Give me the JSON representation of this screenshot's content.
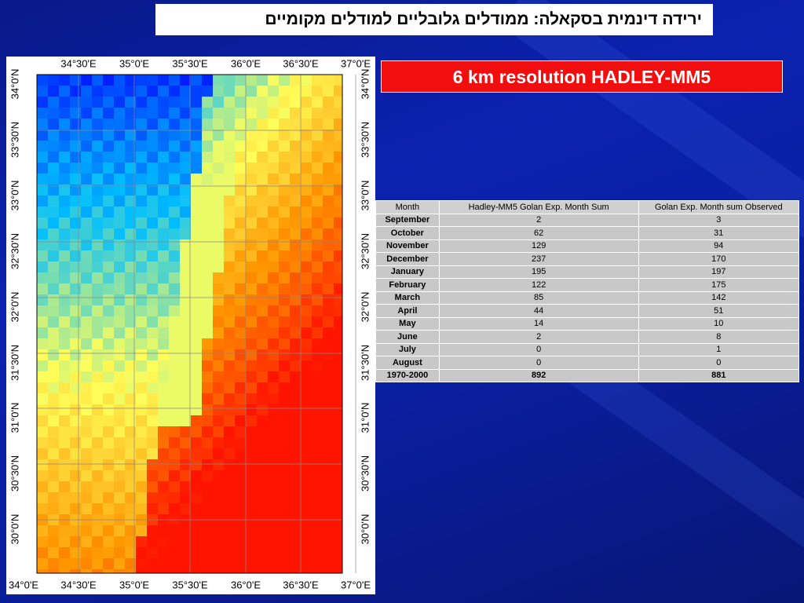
{
  "header": {
    "title": "ירידה דינמית  בסקאלה: ממודלים גלובליים למודלים מקומיים"
  },
  "banner": "6 km resolution HADLEY-MM5",
  "map": {
    "top_labels": [
      "34°30'E",
      "35°0'E",
      "35°30'E",
      "36°0'E",
      "36°30'E",
      "37°0'E"
    ],
    "bottom_labels": [
      "34°0'E",
      "34°30'E",
      "35°0'E",
      "35°30'E",
      "36°0'E",
      "36°30'E",
      "37°0'E"
    ],
    "left_labels": [
      "34°0'N",
      "33°30'N",
      "33°0'N",
      "32°30'N",
      "32°0'N",
      "31°30'N",
      "31°0'N",
      "30°30'N",
      "30°0'N"
    ],
    "right_labels": [
      "34°0'N",
      "33°30'N",
      "33°0'N",
      "32°30'N",
      "32°0'N",
      "31°30'N",
      "31°0'N",
      "30°30'N",
      "30°0'N"
    ]
  },
  "table": {
    "header": [
      "Month",
      "Hadley-MM5 Golan Exp. Month Sum",
      "Golan Exp. Month sum Observed"
    ],
    "rows": [
      [
        "September",
        2,
        3
      ],
      [
        "October",
        62,
        31
      ],
      [
        "November",
        129,
        94
      ],
      [
        "December",
        237,
        170
      ],
      [
        "January",
        195,
        197
      ],
      [
        "February",
        122,
        175
      ],
      [
        "March",
        85,
        142
      ],
      [
        "April",
        44,
        51
      ],
      [
        "May",
        14,
        10
      ],
      [
        "June",
        2,
        8
      ],
      [
        "July",
        0,
        1
      ],
      [
        "August",
        0,
        0
      ],
      [
        "1970-2000",
        892,
        881
      ]
    ]
  }
}
